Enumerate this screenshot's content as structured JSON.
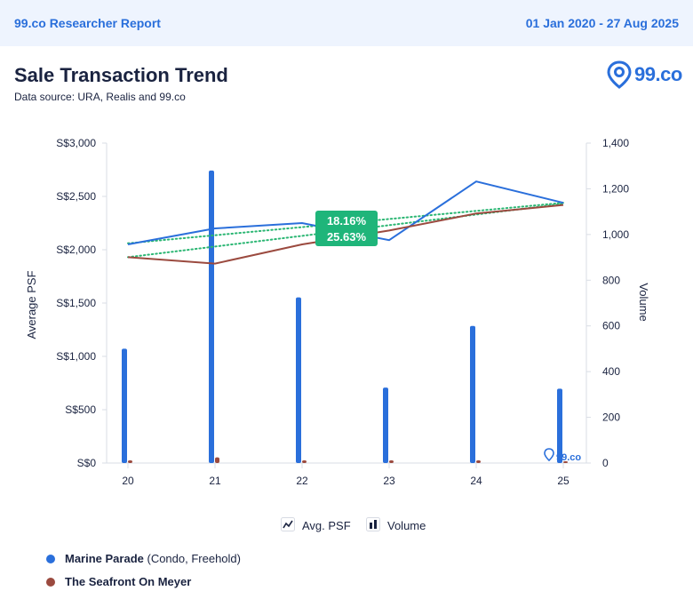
{
  "header": {
    "report_name": "99.co Researcher Report",
    "date_range": "01 Jan 2020 - 27 Aug 2025"
  },
  "title": "Sale Transaction Trend",
  "subtitle": "Data source: URA, Realis and 99.co",
  "brand": {
    "logo_text": "99.co",
    "watermark_text": "99.co",
    "icon": "map-pin-icon"
  },
  "colors": {
    "accent": "#2a6fdb",
    "series_marine": "#2a6fdb",
    "series_seafront": "#9b4a3f",
    "trend_line": "#2bb673",
    "badge_bg": "#1fb57a"
  },
  "legend_types": {
    "avg_psf": "Avg. PSF",
    "volume": "Volume"
  },
  "series_legend": [
    {
      "name": "Marine Parade",
      "meta": " (Condo, Freehold)",
      "color": "#2a6fdb"
    },
    {
      "name": "The Seafront On Meyer",
      "meta": "",
      "color": "#9b4a3f"
    }
  ],
  "chart_data": {
    "type": "bar+line",
    "categories": [
      "20",
      "21",
      "22",
      "23",
      "24",
      "25"
    ],
    "ylabel": "Average PSF",
    "y2label": "Volume",
    "ylim": [
      0,
      3000
    ],
    "y2lim": [
      0,
      1400
    ],
    "y_ticks": [
      0,
      500,
      1000,
      1500,
      2000,
      2500,
      3000
    ],
    "y_tick_labels": [
      "S$0",
      "S$500",
      "S$1,000",
      "S$1,500",
      "S$2,000",
      "S$2,500",
      "S$3,000"
    ],
    "y2_ticks": [
      0,
      200,
      400,
      600,
      800,
      1000,
      1200,
      1400
    ],
    "y2_tick_labels": [
      "0",
      "200",
      "400",
      "600",
      "800",
      "1,000",
      "1,200",
      "1,400"
    ],
    "grid": false,
    "legend_placement": "bottom",
    "series": [
      {
        "name": "Marine Parade",
        "avg_psf": [
          2050,
          2200,
          2250,
          2090,
          2640,
          2440
        ],
        "volume": [
          500,
          1280,
          725,
          330,
          600,
          325
        ],
        "trend_psf": [
          2060,
          2440
        ],
        "trend_change": "18.16%"
      },
      {
        "name": "The Seafront On Meyer",
        "avg_psf": [
          1930,
          1870,
          2050,
          2180,
          2340,
          2420
        ],
        "volume": [
          5,
          25,
          4,
          4,
          8,
          0
        ],
        "trend_psf": [
          1930,
          2430
        ],
        "trend_change": "25.63%"
      }
    ]
  }
}
